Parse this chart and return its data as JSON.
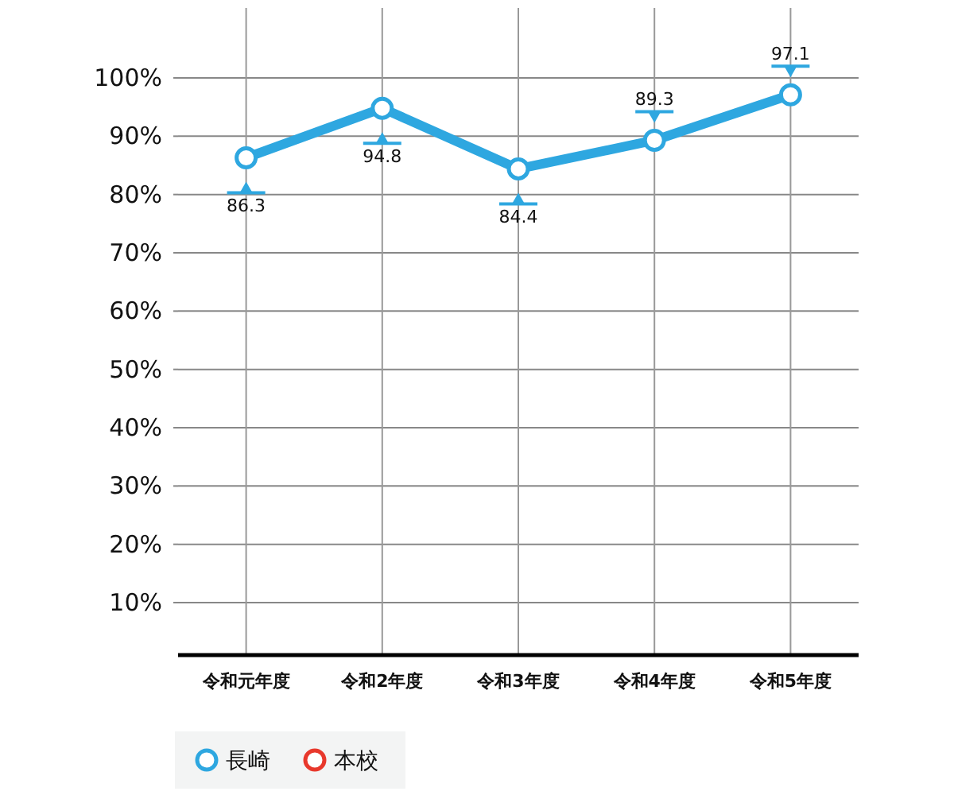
{
  "chart_data": {
    "type": "line",
    "categories": [
      "令和元年度",
      "令和2年度",
      "令和3年度",
      "令和4年度",
      "令和5年度"
    ],
    "series": [
      {
        "name": "長崎",
        "color": "#2ea7e0",
        "values": [
          86.3,
          94.8,
          84.4,
          89.3,
          97.1
        ]
      },
      {
        "name": "本校",
        "color": "#e8382c",
        "values": [
          null,
          null,
          null,
          null,
          null
        ]
      }
    ],
    "ylim": [
      1,
      112
    ],
    "yticks": [
      {
        "value": 10,
        "label": "10%"
      },
      {
        "value": 20,
        "label": "20%"
      },
      {
        "value": 30,
        "label": "30%"
      },
      {
        "value": 40,
        "label": "40%"
      },
      {
        "value": 50,
        "label": "50%"
      },
      {
        "value": 60,
        "label": "60%"
      },
      {
        "value": 70,
        "label": "70%"
      },
      {
        "value": 80,
        "label": "80%"
      },
      {
        "value": 90,
        "label": "90%"
      },
      {
        "value": 100,
        "label": "100%"
      }
    ],
    "grid": true,
    "marker": "circle",
    "line_style": "solid",
    "data_labels": true,
    "legend": "bottom left"
  }
}
